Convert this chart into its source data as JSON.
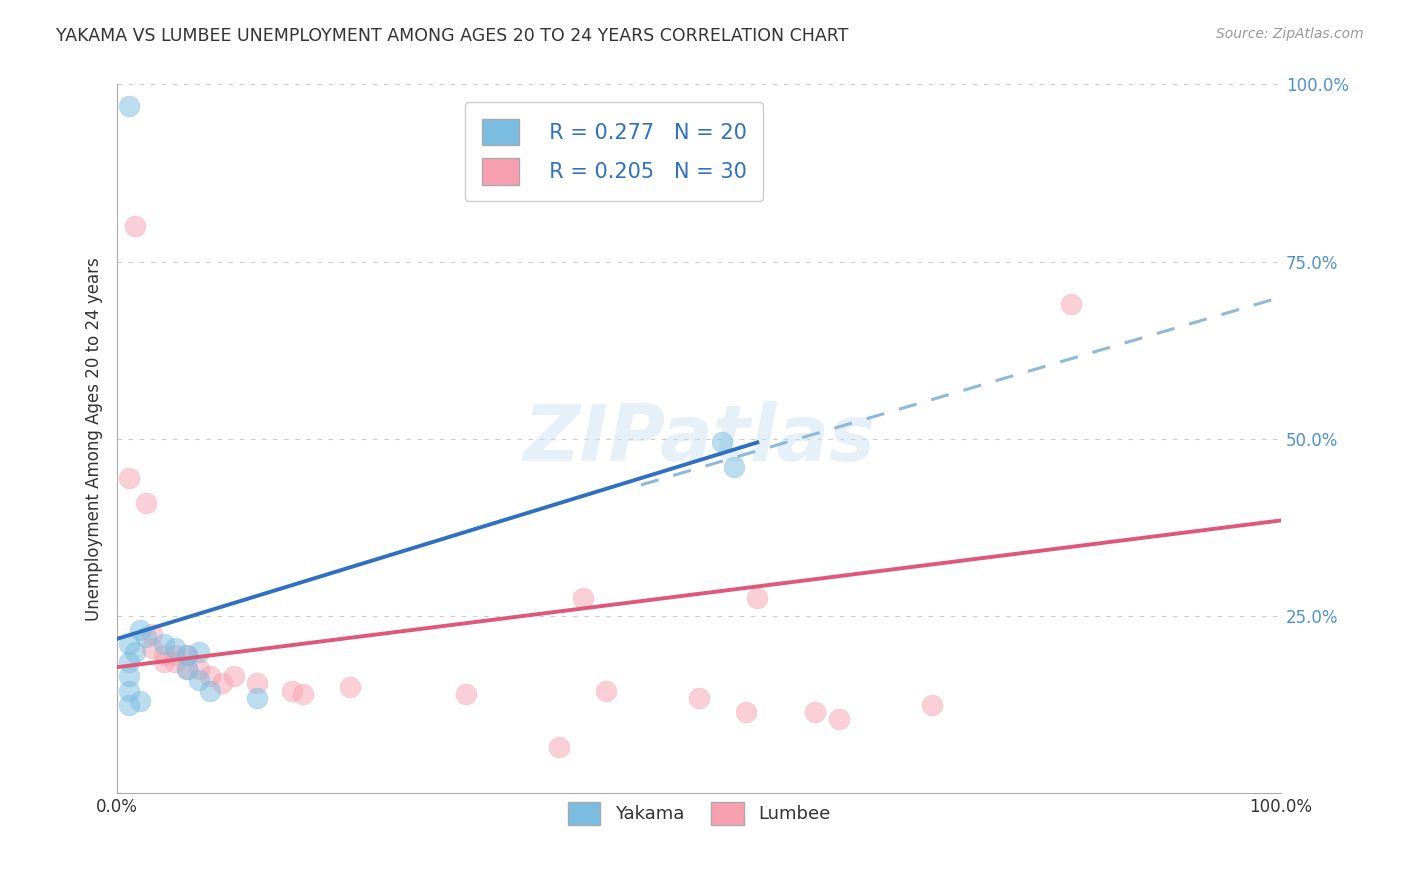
{
  "title": "YAKAMA VS LUMBEE UNEMPLOYMENT AMONG AGES 20 TO 24 YEARS CORRELATION CHART",
  "source": "Source: ZipAtlas.com",
  "ylabel": "Unemployment Among Ages 20 to 24 years",
  "xlim": [
    0,
    1
  ],
  "ylim": [
    0,
    1
  ],
  "yticks": [
    0.0,
    0.25,
    0.5,
    0.75,
    1.0
  ],
  "ytick_labels": [
    "",
    "25.0%",
    "50.0%",
    "75.0%",
    "100.0%"
  ],
  "xtick_positions": [
    0,
    0.25,
    0.5,
    0.75,
    1.0
  ],
  "xtick_labels": [
    "0.0%",
    "",
    "",
    "",
    "100.0%"
  ],
  "legend_yakama_R": "R = 0.277",
  "legend_yakama_N": "N = 20",
  "legend_lumbee_R": "R = 0.205",
  "legend_lumbee_N": "N = 30",
  "yakama_color": "#7bbde0",
  "lumbee_color": "#f9a0b0",
  "yakama_line_color": "#3070c0",
  "lumbee_line_color": "#e05878",
  "dashed_line_color": "#90b8d8",
  "yakama_scatter": [
    [
      0.01,
      0.97
    ],
    [
      0.02,
      0.23
    ],
    [
      0.025,
      0.22
    ],
    [
      0.01,
      0.21
    ],
    [
      0.015,
      0.2
    ],
    [
      0.01,
      0.185
    ],
    [
      0.01,
      0.165
    ],
    [
      0.01,
      0.145
    ],
    [
      0.01,
      0.125
    ],
    [
      0.02,
      0.13
    ],
    [
      0.04,
      0.21
    ],
    [
      0.05,
      0.205
    ],
    [
      0.06,
      0.195
    ],
    [
      0.06,
      0.175
    ],
    [
      0.07,
      0.2
    ],
    [
      0.07,
      0.16
    ],
    [
      0.08,
      0.145
    ],
    [
      0.52,
      0.495
    ],
    [
      0.53,
      0.46
    ],
    [
      0.12,
      0.135
    ]
  ],
  "lumbee_scatter": [
    [
      0.015,
      0.8
    ],
    [
      0.01,
      0.445
    ],
    [
      0.025,
      0.41
    ],
    [
      0.03,
      0.225
    ],
    [
      0.03,
      0.205
    ],
    [
      0.04,
      0.195
    ],
    [
      0.04,
      0.185
    ],
    [
      0.05,
      0.195
    ],
    [
      0.05,
      0.185
    ],
    [
      0.06,
      0.195
    ],
    [
      0.06,
      0.175
    ],
    [
      0.07,
      0.175
    ],
    [
      0.08,
      0.165
    ],
    [
      0.09,
      0.155
    ],
    [
      0.1,
      0.165
    ],
    [
      0.12,
      0.155
    ],
    [
      0.15,
      0.145
    ],
    [
      0.16,
      0.14
    ],
    [
      0.2,
      0.15
    ],
    [
      0.3,
      0.14
    ],
    [
      0.4,
      0.275
    ],
    [
      0.42,
      0.145
    ],
    [
      0.5,
      0.135
    ],
    [
      0.54,
      0.115
    ],
    [
      0.55,
      0.275
    ],
    [
      0.62,
      0.105
    ],
    [
      0.7,
      0.125
    ],
    [
      0.82,
      0.69
    ],
    [
      0.38,
      0.065
    ],
    [
      0.6,
      0.115
    ]
  ],
  "yakama_line_x": [
    0.0,
    0.55
  ],
  "yakama_line_y": [
    0.218,
    0.495
  ],
  "lumbee_line_x": [
    0.0,
    1.0
  ],
  "lumbee_line_y": [
    0.178,
    0.385
  ],
  "dashed_line_x": [
    0.45,
    1.0
  ],
  "dashed_line_y": [
    0.435,
    0.7
  ],
  "watermark": "ZIPatlas",
  "background_color": "#ffffff",
  "grid_color": "#cccccc"
}
